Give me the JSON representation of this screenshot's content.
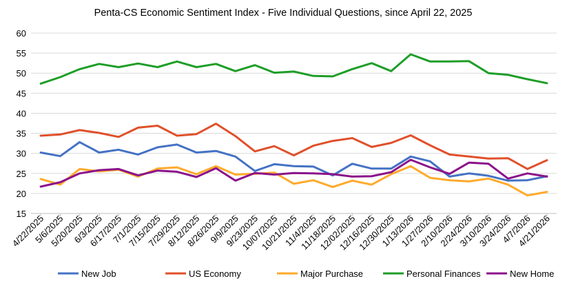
{
  "chart_data": {
    "type": "line",
    "title": "Penta-CS Economic Sentiment Index - Five Individual Questions, since April 22, 2025",
    "xlabel": "",
    "ylabel": "",
    "ylim": [
      15,
      60
    ],
    "yticks": [
      15,
      20,
      25,
      30,
      35,
      40,
      45,
      50,
      55,
      60
    ],
    "grid": "horizontal",
    "legend": "bottom",
    "categories": [
      "4/22/2025",
      "5/6/2025",
      "5/20/2025",
      "6/3/2025",
      "6/17/2025",
      "7/1/2025",
      "7/15/2025",
      "7/29/2025",
      "8/12/2025",
      "8/26/2025",
      "9/9/2025",
      "9/23/2025",
      "10/07/2025",
      "10/21/2025",
      "11/4/2025",
      "11/18/2025",
      "12/02/2025",
      "12/16/2025",
      "12/30/2025",
      "1/13/2026",
      "1/27/2026",
      "2/10/2026",
      "2/24/2026",
      "3/10/2026",
      "3/24/2026",
      "4/7/2026",
      "4/21/2026"
    ],
    "series": [
      {
        "name": "New Job",
        "color": "#4472C4",
        "values": [
          30.2,
          29.3,
          32.8,
          30.2,
          30.9,
          29.7,
          31.5,
          32.2,
          30.2,
          30.6,
          29.2,
          25.6,
          27.3,
          26.8,
          26.7,
          24.5,
          27.4,
          26.2,
          26.2,
          29.2,
          28.0,
          24.2,
          25.0,
          24.4,
          23.2,
          23.3,
          24.3
        ]
      },
      {
        "name": "US Economy",
        "color": "#E0502A",
        "values": [
          34.4,
          34.7,
          35.8,
          35.1,
          34.1,
          36.4,
          36.9,
          34.4,
          34.8,
          37.4,
          34.3,
          30.5,
          31.8,
          29.5,
          31.9,
          33.1,
          33.8,
          31.6,
          32.6,
          34.5,
          32.0,
          29.7,
          29.2,
          28.7,
          28.8,
          26.1,
          28.3
        ]
      },
      {
        "name": "Major Purchase",
        "color": "#FFAA2B",
        "values": [
          23.6,
          22.2,
          26.1,
          25.5,
          25.9,
          24.2,
          26.2,
          26.5,
          24.8,
          26.8,
          24.7,
          24.9,
          25.2,
          22.4,
          23.3,
          21.6,
          23.2,
          22.2,
          24.8,
          26.8,
          23.9,
          23.3,
          23.0,
          23.7,
          22.2,
          19.5,
          20.4
        ]
      },
      {
        "name": "Personal Finances",
        "color": "#1E9E28",
        "values": [
          47.4,
          49.0,
          51.0,
          52.3,
          51.5,
          52.4,
          51.5,
          52.9,
          51.5,
          52.3,
          50.5,
          52.0,
          50.1,
          50.4,
          49.3,
          49.2,
          51.0,
          52.5,
          50.5,
          54.7,
          52.9,
          52.9,
          53.0,
          50.0,
          49.6,
          48.5,
          47.5
        ]
      },
      {
        "name": "New Home",
        "color": "#8B128B",
        "values": [
          21.7,
          22.8,
          25.0,
          25.8,
          26.1,
          24.5,
          25.7,
          25.4,
          24.1,
          26.3,
          23.2,
          25.1,
          24.7,
          25.1,
          25.0,
          24.8,
          24.2,
          24.3,
          25.3,
          28.4,
          26.5,
          24.9,
          27.7,
          27.4,
          23.7,
          25.0,
          24.2
        ]
      }
    ]
  }
}
